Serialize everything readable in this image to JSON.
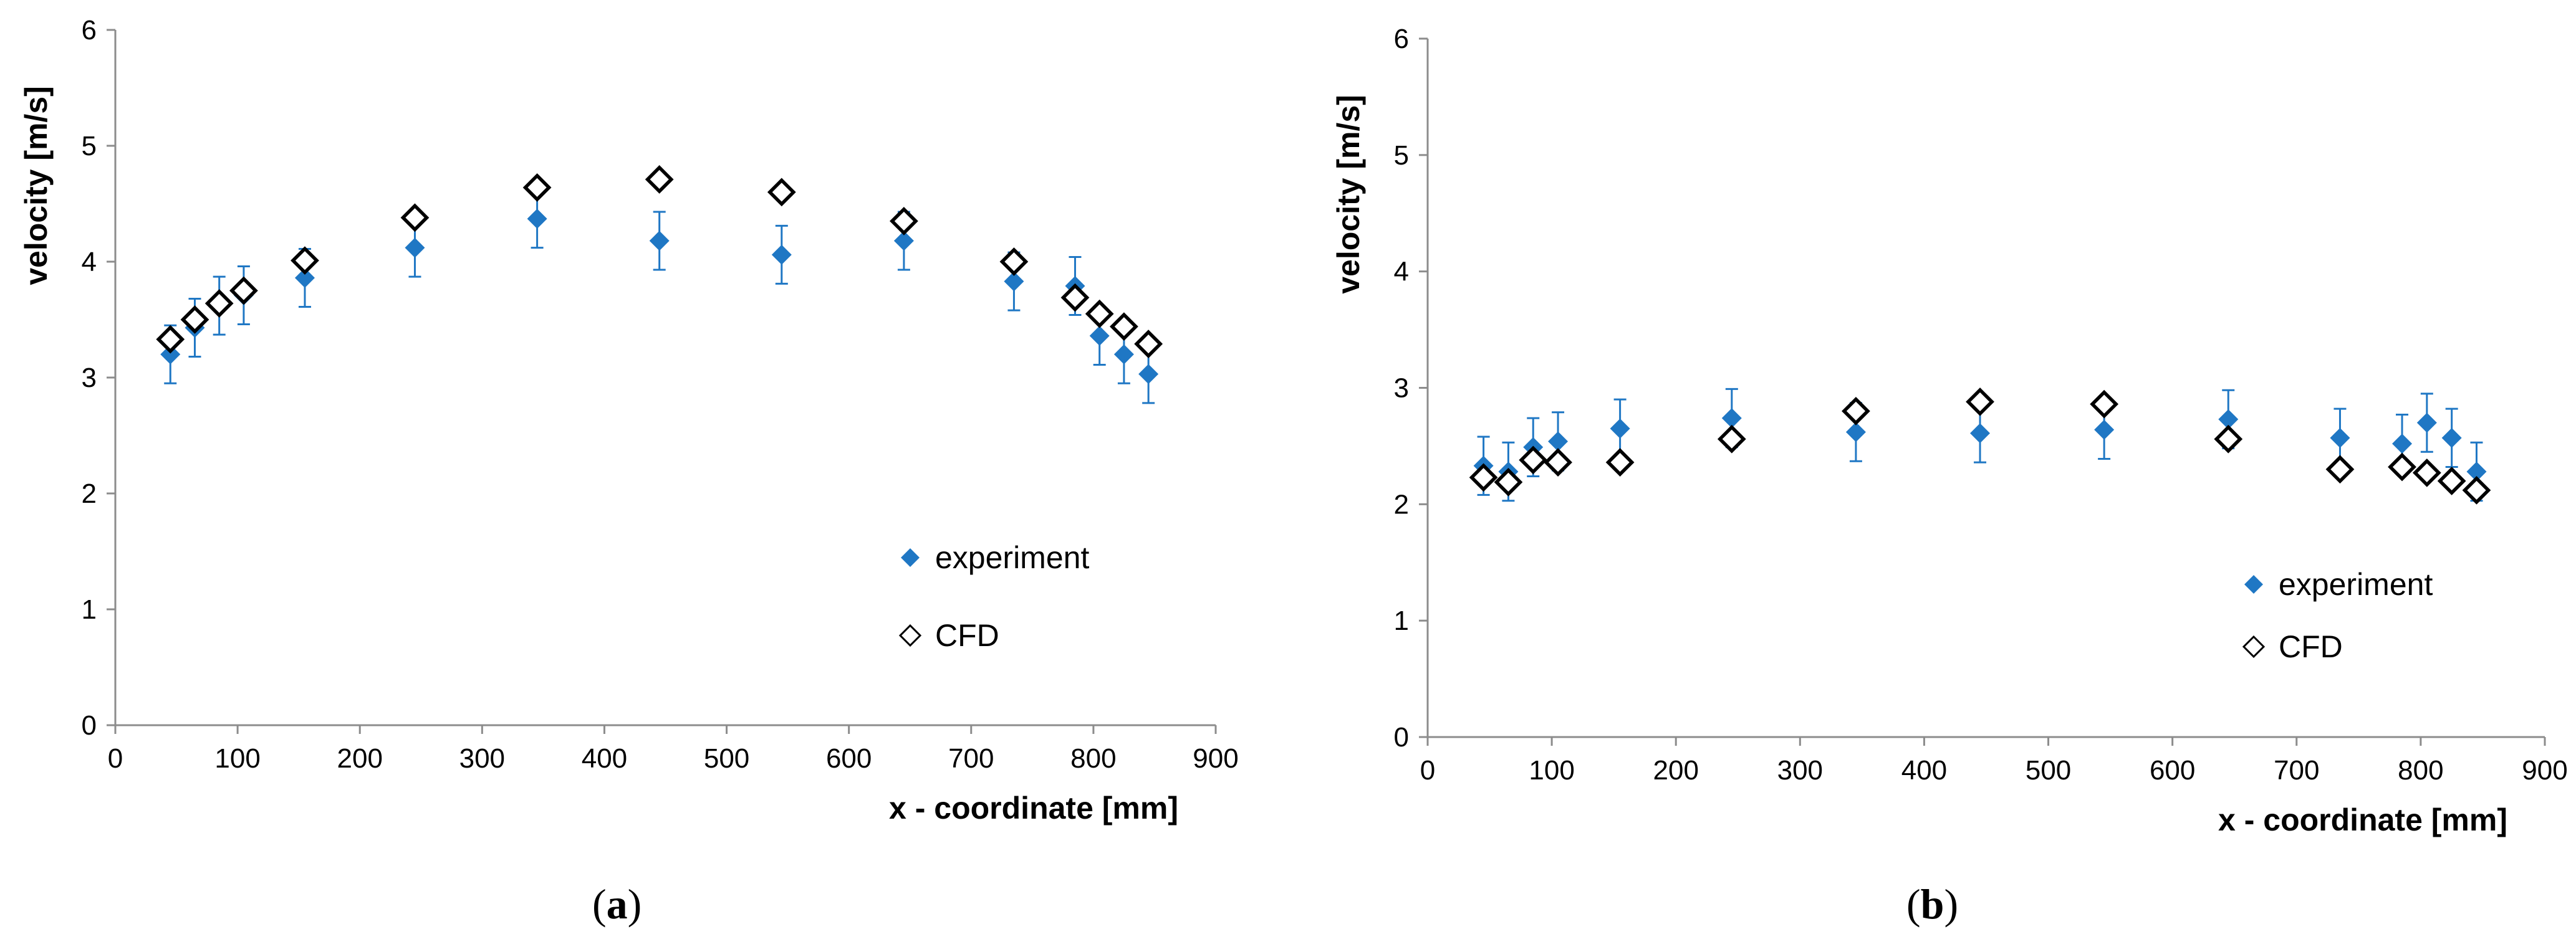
{
  "chart_data": [
    {
      "id": "a",
      "type": "scatter",
      "panel_label": "a",
      "title": "",
      "xlabel": "x - coordinate [mm]",
      "ylabel": "velocity [m/s]",
      "xlim": [
        0,
        900
      ],
      "ylim": [
        0,
        6
      ],
      "xticks": [
        0,
        100,
        200,
        300,
        400,
        500,
        600,
        700,
        800,
        900
      ],
      "yticks": [
        0,
        1,
        2,
        3,
        4,
        5,
        6
      ],
      "grid": false,
      "legend_position": "bottom-right",
      "series": [
        {
          "name": "experiment",
          "marker": "filled-diamond",
          "color": "#1f77c4",
          "x": [
            45,
            65,
            85,
            105,
            155,
            245,
            345,
            445,
            545,
            645,
            735,
            785,
            805,
            825,
            845
          ],
          "y": [
            3.2,
            3.43,
            3.62,
            3.71,
            3.86,
            4.12,
            4.37,
            4.18,
            4.06,
            4.18,
            3.83,
            3.79,
            3.36,
            3.2,
            3.03
          ],
          "err": [
            0.25,
            0.25,
            0.25,
            0.25,
            0.25,
            0.25,
            0.25,
            0.25,
            0.25,
            0.25,
            0.25,
            0.25,
            0.25,
            0.25,
            0.25
          ]
        },
        {
          "name": "CFD",
          "marker": "open-diamond",
          "color": "#000000",
          "x": [
            45,
            65,
            85,
            105,
            155,
            245,
            345,
            445,
            545,
            645,
            735,
            785,
            805,
            825,
            845
          ],
          "y": [
            3.33,
            3.5,
            3.64,
            3.75,
            4.01,
            4.38,
            4.64,
            4.71,
            4.6,
            4.35,
            4.0,
            3.69,
            3.55,
            3.44,
            3.29
          ]
        }
      ]
    },
    {
      "id": "b",
      "type": "scatter",
      "panel_label": "b",
      "title": "",
      "xlabel": "x - coordinate [mm]",
      "ylabel": "velocity [m/s]",
      "xlim": [
        0,
        900
      ],
      "ylim": [
        0,
        6
      ],
      "xticks": [
        0,
        100,
        200,
        300,
        400,
        500,
        600,
        700,
        800,
        900
      ],
      "yticks": [
        0,
        1,
        2,
        3,
        4,
        5,
        6
      ],
      "grid": false,
      "legend_position": "bottom-right",
      "series": [
        {
          "name": "experiment",
          "marker": "filled-diamond",
          "color": "#1f77c4",
          "x": [
            45,
            65,
            85,
            105,
            155,
            245,
            345,
            445,
            545,
            645,
            735,
            785,
            805,
            825,
            845
          ],
          "y": [
            2.33,
            2.28,
            2.49,
            2.54,
            2.65,
            2.74,
            2.62,
            2.61,
            2.64,
            2.73,
            2.57,
            2.52,
            2.7,
            2.57,
            2.28
          ],
          "err": [
            0.25,
            0.25,
            0.25,
            0.25,
            0.25,
            0.25,
            0.25,
            0.25,
            0.25,
            0.25,
            0.25,
            0.25,
            0.25,
            0.25,
            0.25
          ]
        },
        {
          "name": "CFD",
          "marker": "open-diamond",
          "color": "#000000",
          "x": [
            45,
            65,
            85,
            105,
            155,
            245,
            345,
            445,
            545,
            645,
            735,
            785,
            805,
            825,
            845
          ],
          "y": [
            2.23,
            2.19,
            2.38,
            2.36,
            2.36,
            2.56,
            2.8,
            2.88,
            2.86,
            2.56,
            2.3,
            2.32,
            2.27,
            2.2,
            2.12
          ]
        }
      ]
    }
  ]
}
